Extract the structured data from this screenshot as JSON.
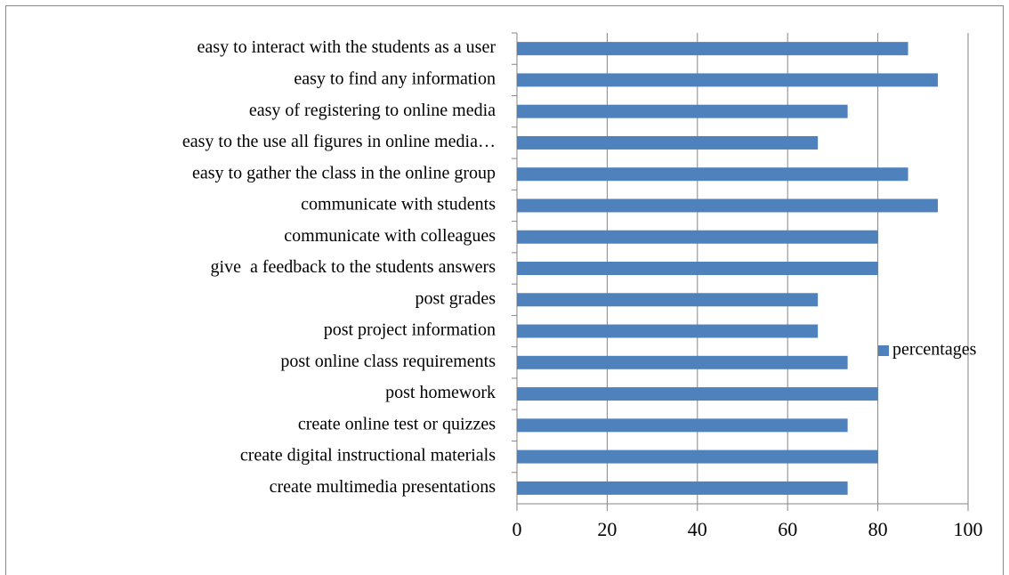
{
  "chart_data": {
    "type": "bar",
    "orientation": "horizontal",
    "categories": [
      "easy to interact with the students as a user",
      "easy to find any information",
      "easy of registering to online media",
      "easy to the use all figures in online media…",
      "easy to gather the class in the online group",
      "communicate with students",
      "communicate with colleagues",
      "give  a feedback to the students answers",
      "post grades",
      "post project information",
      "post online class requirements",
      "post homework",
      "create online test or quizzes",
      "create digital instructional materials",
      "create multimedia presentations"
    ],
    "series": [
      {
        "name": "percentages",
        "color": "#4f81bd",
        "values": [
          86.7,
          93.3,
          73.3,
          66.7,
          86.7,
          93.3,
          80,
          80,
          66.7,
          66.7,
          73.3,
          80,
          73.3,
          80,
          73.3
        ]
      }
    ],
    "xlim": [
      0,
      100
    ],
    "xticks": [
      0,
      20,
      40,
      60,
      80,
      100
    ],
    "grid": true,
    "legend": "right"
  }
}
